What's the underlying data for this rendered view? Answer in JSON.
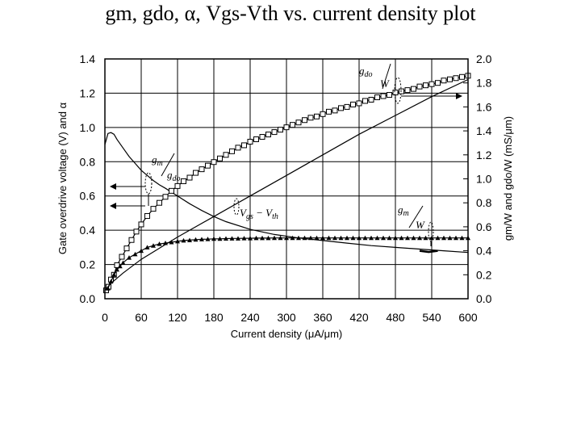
{
  "title": "gm, gdo, α, Vgs-Vth vs. current density plot",
  "chart_data": {
    "type": "line",
    "xlabel": "Current density (μA/μm)",
    "ylabel_left": "Gate overdrive voltage (V) and α",
    "ylabel_right": "gm/W and gdo/W (mS/μm)",
    "xlim": [
      0,
      600
    ],
    "ylim_left": [
      0,
      1.4
    ],
    "ylim_right": [
      0,
      2.0
    ],
    "x_ticks": [
      "0",
      "60",
      "120",
      "180",
      "240",
      "300",
      "360",
      "420",
      "480",
      "540",
      "600"
    ],
    "y_ticks_left": [
      "0.0",
      "0.2",
      "0.4",
      "0.6",
      "0.8",
      "1.0",
      "1.2",
      "1.4"
    ],
    "y_ticks_right": [
      "0.0",
      "0.2",
      "0.4",
      "0.6",
      "0.8",
      "1.0",
      "1.2",
      "1.4",
      "1.6",
      "1.8",
      "2.0"
    ],
    "grid": true,
    "series": [
      {
        "name": "gm",
        "axis": "left",
        "marker": "none",
        "x": [
          0,
          5,
          10,
          15,
          20,
          30,
          40,
          50,
          60,
          70,
          80,
          90,
          100,
          120,
          140,
          160,
          180,
          200,
          240,
          280,
          320,
          360,
          400,
          440,
          480,
          520,
          560,
          600
        ],
        "y": [
          0.9,
          0.965,
          0.97,
          0.96,
          0.93,
          0.88,
          0.83,
          0.79,
          0.75,
          0.72,
          0.69,
          0.665,
          0.645,
          0.6,
          0.555,
          0.515,
          0.48,
          0.45,
          0.405,
          0.375,
          0.355,
          0.34,
          0.325,
          0.31,
          0.3,
          0.29,
          0.28,
          0.27
        ]
      },
      {
        "name": "gdo",
        "axis": "right",
        "marker": "square",
        "x": [
          2,
          6,
          10,
          15,
          20,
          28,
          36,
          44,
          52,
          60,
          70,
          80,
          90,
          100,
          110,
          120,
          130,
          140,
          150,
          160,
          170,
          180,
          190,
          200,
          210,
          220,
          230,
          240,
          250,
          260,
          270,
          280,
          290,
          300,
          310,
          320,
          330,
          340,
          350,
          360,
          370,
          380,
          390,
          400,
          410,
          420,
          430,
          440,
          450,
          460,
          470,
          480,
          490,
          500,
          510,
          520,
          530,
          540,
          550,
          560,
          570,
          580,
          590,
          600
        ],
        "y": [
          0.07,
          0.1,
          0.16,
          0.2,
          0.28,
          0.35,
          0.42,
          0.49,
          0.56,
          0.62,
          0.69,
          0.75,
          0.8,
          0.85,
          0.9,
          0.94,
          0.98,
          1.01,
          1.05,
          1.08,
          1.11,
          1.14,
          1.17,
          1.2,
          1.23,
          1.26,
          1.28,
          1.31,
          1.33,
          1.35,
          1.37,
          1.39,
          1.41,
          1.43,
          1.45,
          1.47,
          1.49,
          1.51,
          1.52,
          1.54,
          1.56,
          1.57,
          1.59,
          1.6,
          1.62,
          1.63,
          1.65,
          1.66,
          1.68,
          1.69,
          1.7,
          1.72,
          1.73,
          1.74,
          1.75,
          1.77,
          1.78,
          1.79,
          1.8,
          1.82,
          1.83,
          1.84,
          1.85,
          1.86
        ]
      },
      {
        "name": "α",
        "axis": "left",
        "marker": "triangle",
        "x": [
          5,
          10,
          15,
          20,
          25,
          30,
          40,
          50,
          60,
          70,
          80,
          90,
          100,
          110,
          120,
          130,
          140,
          150,
          160,
          170,
          180,
          190,
          200,
          210,
          220,
          230,
          240,
          250,
          260,
          270,
          280,
          290,
          300,
          310,
          320,
          330,
          340,
          350,
          360,
          370,
          380,
          390,
          400,
          410,
          420,
          430,
          440,
          450,
          460,
          470,
          480,
          490,
          500,
          510,
          520,
          530,
          540,
          550,
          560,
          570,
          580,
          590,
          600
        ],
        "y": [
          0.06,
          0.1,
          0.14,
          0.17,
          0.19,
          0.21,
          0.24,
          0.26,
          0.28,
          0.3,
          0.31,
          0.32,
          0.325,
          0.33,
          0.335,
          0.34,
          0.342,
          0.345,
          0.347,
          0.348,
          0.35,
          0.35,
          0.351,
          0.352,
          0.352,
          0.353,
          0.353,
          0.354,
          0.354,
          0.354,
          0.355,
          0.355,
          0.355,
          0.355,
          0.355,
          0.355,
          0.355,
          0.355,
          0.355,
          0.355,
          0.355,
          0.355,
          0.355,
          0.355,
          0.355,
          0.355,
          0.355,
          0.355,
          0.355,
          0.355,
          0.355,
          0.355,
          0.355,
          0.355,
          0.355,
          0.355,
          0.355,
          0.355,
          0.355,
          0.355,
          0.355,
          0.355,
          0.355
        ]
      },
      {
        "name": "Vgs − Vth",
        "axis": "left",
        "marker": "none",
        "x": [
          0,
          10,
          30,
          60,
          120,
          180,
          240,
          300,
          360,
          420,
          480,
          540,
          600
        ],
        "y": [
          0.05,
          0.09,
          0.15,
          0.23,
          0.36,
          0.48,
          0.6,
          0.72,
          0.84,
          0.96,
          1.07,
          1.18,
          1.28
        ]
      },
      {
        "name": "gm/W",
        "axis": "right",
        "marker": "none",
        "x": [
          520,
          535,
          550
        ],
        "y": [
          0.4,
          0.39,
          0.4
        ]
      }
    ],
    "annotations": {
      "gdo_w": {
        "top": "g",
        "top_sub": "do",
        "bottom": "W"
      },
      "gm_gdo": {
        "gm": "g",
        "gm_sub": "m",
        "gdo": "g",
        "gdo_sub": "do"
      },
      "vgs": {
        "a": "V",
        "a_sub": "gs",
        "dash": " − ",
        "b": "V",
        "b_sub": "th"
      },
      "gm_w": {
        "top": "g",
        "top_sub": "m",
        "bottom": "W"
      }
    }
  }
}
